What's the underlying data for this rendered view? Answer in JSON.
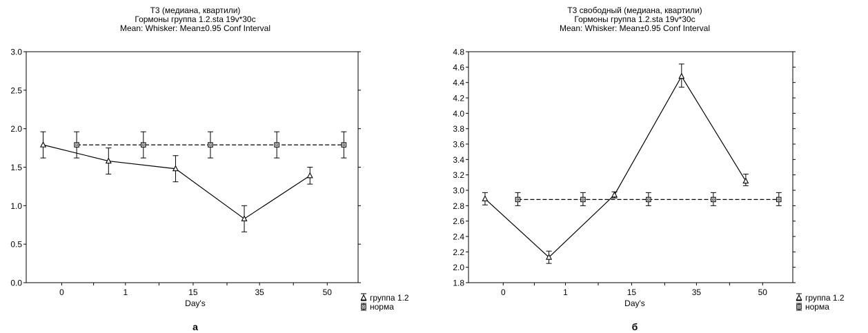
{
  "legend": {
    "group_label": "группа 1.2",
    "norm_label": "норма"
  },
  "chart_data": [
    {
      "type": "line",
      "panel_label": "а",
      "title_lines": [
        "T3 (медиана, квартили)",
        "Гормоны группа 1.2.sta 19v*30c",
        "Mean: Whisker: Mean±0.95 Conf Interval"
      ],
      "xlabel": "Day's",
      "categories": [
        "0",
        "1",
        "15",
        "35",
        "50"
      ],
      "ylim": [
        0,
        3
      ],
      "yticks": [
        "0.0",
        "0.5",
        "1.0",
        "1.5",
        "2.0",
        "2.5",
        "3.0"
      ],
      "legend_position": "right",
      "grid": false,
      "series": [
        {
          "name": "группа 1.2",
          "style": "solid",
          "marker": "triangle",
          "values": [
            1.79,
            1.58,
            1.48,
            0.83,
            1.39
          ],
          "ci_low": [
            1.62,
            1.41,
            1.31,
            0.66,
            1.28
          ],
          "ci_high": [
            1.96,
            1.75,
            1.65,
            1.0,
            1.5
          ]
        },
        {
          "name": "норма",
          "style": "dashed",
          "marker": "square",
          "values": [
            1.79,
            1.79,
            1.79,
            1.79,
            1.79
          ],
          "ci_low": [
            1.62,
            1.62,
            1.62,
            1.62,
            1.62
          ],
          "ci_high": [
            1.96,
            1.96,
            1.96,
            1.96,
            1.96
          ]
        }
      ]
    },
    {
      "type": "line",
      "panel_label": "б",
      "title_lines": [
        "T3 свободный (медиана, квартили)",
        "Гормоны группа 1.2.sta 19v*30c",
        "Mean: Whisker: Mean±0.95 Conf Interval"
      ],
      "xlabel": "Day's",
      "categories": [
        "0",
        "1",
        "15",
        "35",
        "50"
      ],
      "ylim": [
        1.8,
        4.8
      ],
      "yticks": [
        "1.8",
        "2.0",
        "2.2",
        "2.4",
        "2.6",
        "2.8",
        "3.0",
        "3.2",
        "3.4",
        "3.6",
        "3.8",
        "4.0",
        "4.2",
        "4.4",
        "4.6",
        "4.8"
      ],
      "legend_position": "right",
      "grid": false,
      "series": [
        {
          "name": "группа 1.2",
          "style": "solid",
          "marker": "triangle",
          "values": [
            2.89,
            2.13,
            2.94,
            4.48,
            3.12
          ],
          "ci_low": [
            2.81,
            2.05,
            2.9,
            4.34,
            3.06
          ],
          "ci_high": [
            2.97,
            2.21,
            2.98,
            4.64,
            3.21
          ]
        },
        {
          "name": "норма",
          "style": "dashed",
          "marker": "square",
          "values": [
            2.88,
            2.88,
            2.88,
            2.88,
            2.88
          ],
          "ci_low": [
            2.8,
            2.8,
            2.8,
            2.8,
            2.8
          ],
          "ci_high": [
            2.97,
            2.97,
            2.97,
            2.97,
            2.97
          ]
        }
      ]
    }
  ]
}
